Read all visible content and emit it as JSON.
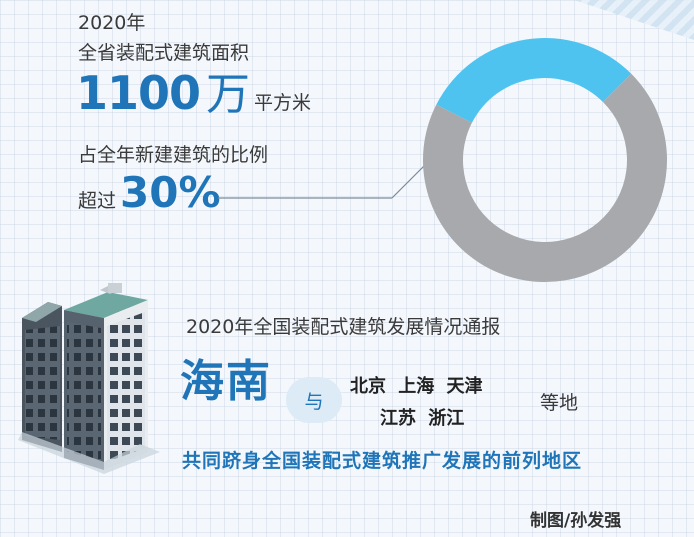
{
  "texts": {
    "year_line": "2020年",
    "area_label": "全省装配式建筑面积",
    "area_value": "1100",
    "area_unit_big": "万",
    "area_unit_small": "平方米",
    "share_label": "占全年新建建筑的比例",
    "share_prefix": "超过",
    "share_value": "30%",
    "report_title": "2020年全国装配式建筑发展情况通报",
    "province": "海南",
    "conjunction": "与",
    "cities_line1": "北京 上海 天津",
    "cities_line2": "江苏 浙江",
    "etc": "等地",
    "slogan": "共同跻身全国装配式建筑推广发展的前列地区",
    "credit": "制图/孙发强"
  },
  "colors": {
    "accent_blue": "#1f75b8",
    "donut_highlight": "#4fc3ef",
    "donut_rest": "#a7a9ac"
  },
  "chart_data": {
    "type": "pie",
    "style": "donut",
    "values": [
      30,
      70
    ],
    "colors": [
      "#4fc3ef",
      "#a7a9ac"
    ]
  }
}
